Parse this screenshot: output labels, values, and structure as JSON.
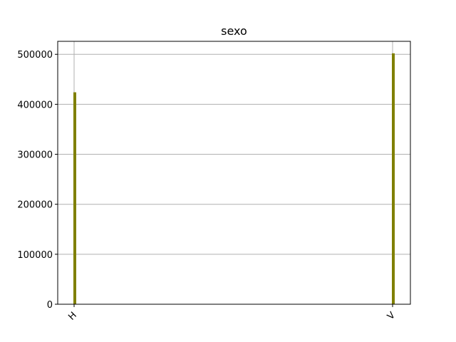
{
  "chart_data": {
    "type": "bar",
    "title": "sexo",
    "xlabel": "",
    "ylabel": "",
    "categories": [
      "H",
      "V"
    ],
    "values": [
      424000,
      502000
    ],
    "ylim": [
      0,
      526000
    ],
    "yticks": [
      0,
      100000,
      200000,
      300000,
      400000,
      500000
    ],
    "ytick_labels": [
      "0",
      "100000",
      "200000",
      "300000",
      "400000",
      "500000"
    ],
    "grid": true,
    "bar_color": "#808000",
    "grid_color": "#b0b0b0",
    "legend": "none"
  }
}
